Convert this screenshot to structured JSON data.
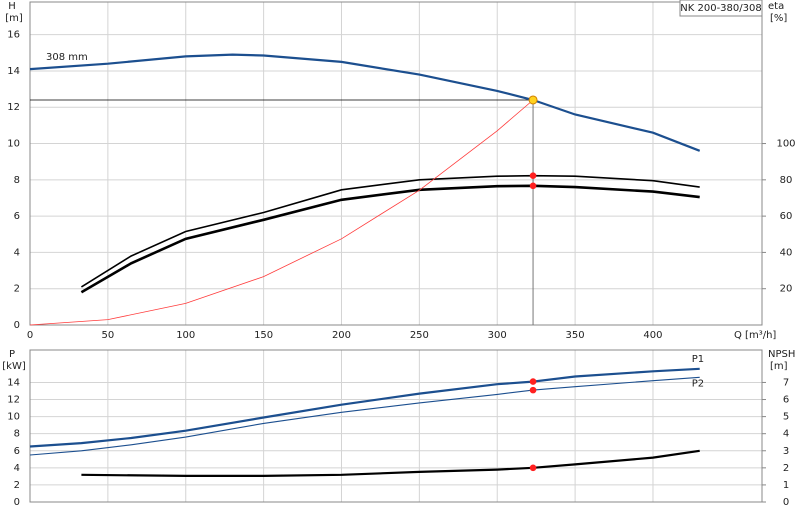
{
  "chart_data": [
    {
      "type": "line",
      "title": "NK 200-380/308",
      "xlabel": "Q [m³/h]",
      "ylabel": "H",
      "yunit": "[m]",
      "y2label": "eta",
      "y2unit": "[%]",
      "xlim": [
        0,
        470
      ],
      "xticks": [
        0,
        50,
        100,
        150,
        200,
        250,
        300,
        350,
        400
      ],
      "ylim": [
        0,
        17.8
      ],
      "yticks": [
        0,
        2,
        4,
        6,
        8,
        10,
        12,
        14,
        16
      ],
      "y2lim": [
        0,
        178
      ],
      "y2ticks": [
        20,
        40,
        60,
        80,
        100
      ],
      "grid": true,
      "duty_point": {
        "x": 323,
        "y": 12.4,
        "color": "#ffd21f"
      },
      "series": [
        {
          "name": "308 mm",
          "label_at": "start",
          "color": "#1c4f8f",
          "width": 2.2,
          "dot": false,
          "x": [
            0,
            50,
            100,
            130,
            150,
            200,
            250,
            300,
            323,
            350,
            400,
            430
          ],
          "values": [
            14.1,
            14.4,
            14.8,
            14.9,
            14.85,
            14.5,
            13.8,
            12.9,
            12.4,
            11.6,
            10.6,
            9.6
          ]
        },
        {
          "axis": "y2",
          "color": "#000000",
          "width": 1.6,
          "dot": true,
          "x": [
            33,
            65,
            100,
            150,
            200,
            250,
            300,
            323,
            350,
            400,
            430
          ],
          "values": [
            21,
            38,
            51.5,
            62,
            74.5,
            80,
            82,
            82.3,
            82,
            79.5,
            76
          ]
        },
        {
          "axis": "y2",
          "color": "#000000",
          "width": 2.6,
          "dot": true,
          "x": [
            33,
            65,
            100,
            150,
            200,
            250,
            300,
            323,
            350,
            400,
            430
          ],
          "values": [
            18,
            34,
            47.5,
            58,
            69,
            74.5,
            76.5,
            76.7,
            76,
            73.5,
            70.5
          ]
        },
        {
          "color": "#ff3b3b",
          "width": 0.8,
          "dot": false,
          "x": [
            0,
            50,
            100,
            150,
            200,
            250,
            300,
            323
          ],
          "values": [
            0,
            0.3,
            1.19,
            2.67,
            4.75,
            7.43,
            10.7,
            12.4
          ]
        }
      ]
    },
    {
      "type": "line",
      "ylabel": "P",
      "yunit": "[kW]",
      "y2label": "NPSH",
      "y2unit": "[m]",
      "sharex": true,
      "ylim": [
        0,
        17.8
      ],
      "yticks": [
        0,
        2,
        4,
        6,
        8,
        10,
        12,
        14
      ],
      "y2lim": [
        0,
        8.9
      ],
      "y2ticks": [
        0,
        1,
        2,
        3,
        4,
        5,
        6,
        7
      ],
      "grid": true,
      "series": [
        {
          "name": "P1",
          "label_at": "end",
          "color": "#1c4f8f",
          "width": 2.2,
          "dot": true,
          "x": [
            0,
            33,
            65,
            100,
            150,
            200,
            250,
            300,
            323,
            350,
            400,
            430
          ],
          "values": [
            6.5,
            6.9,
            7.5,
            8.35,
            9.9,
            11.4,
            12.7,
            13.8,
            14.1,
            14.7,
            15.3,
            15.6
          ]
        },
        {
          "name": "P2",
          "label_at": "end",
          "color": "#1c4f8f",
          "width": 1.1,
          "dot": true,
          "x": [
            0,
            33,
            65,
            100,
            150,
            200,
            250,
            300,
            323,
            350,
            400,
            430
          ],
          "values": [
            5.5,
            6,
            6.7,
            7.6,
            9.2,
            10.5,
            11.6,
            12.6,
            13.1,
            13.5,
            14.2,
            14.6
          ]
        },
        {
          "axis": "y2",
          "color": "#000000",
          "width": 2.2,
          "dot": true,
          "x": [
            33,
            100,
            150,
            200,
            250,
            300,
            323,
            350,
            400,
            430
          ],
          "values": [
            1.59,
            1.53,
            1.53,
            1.59,
            1.76,
            1.9,
            2.0,
            2.2,
            2.6,
            3.0
          ]
        }
      ]
    }
  ]
}
